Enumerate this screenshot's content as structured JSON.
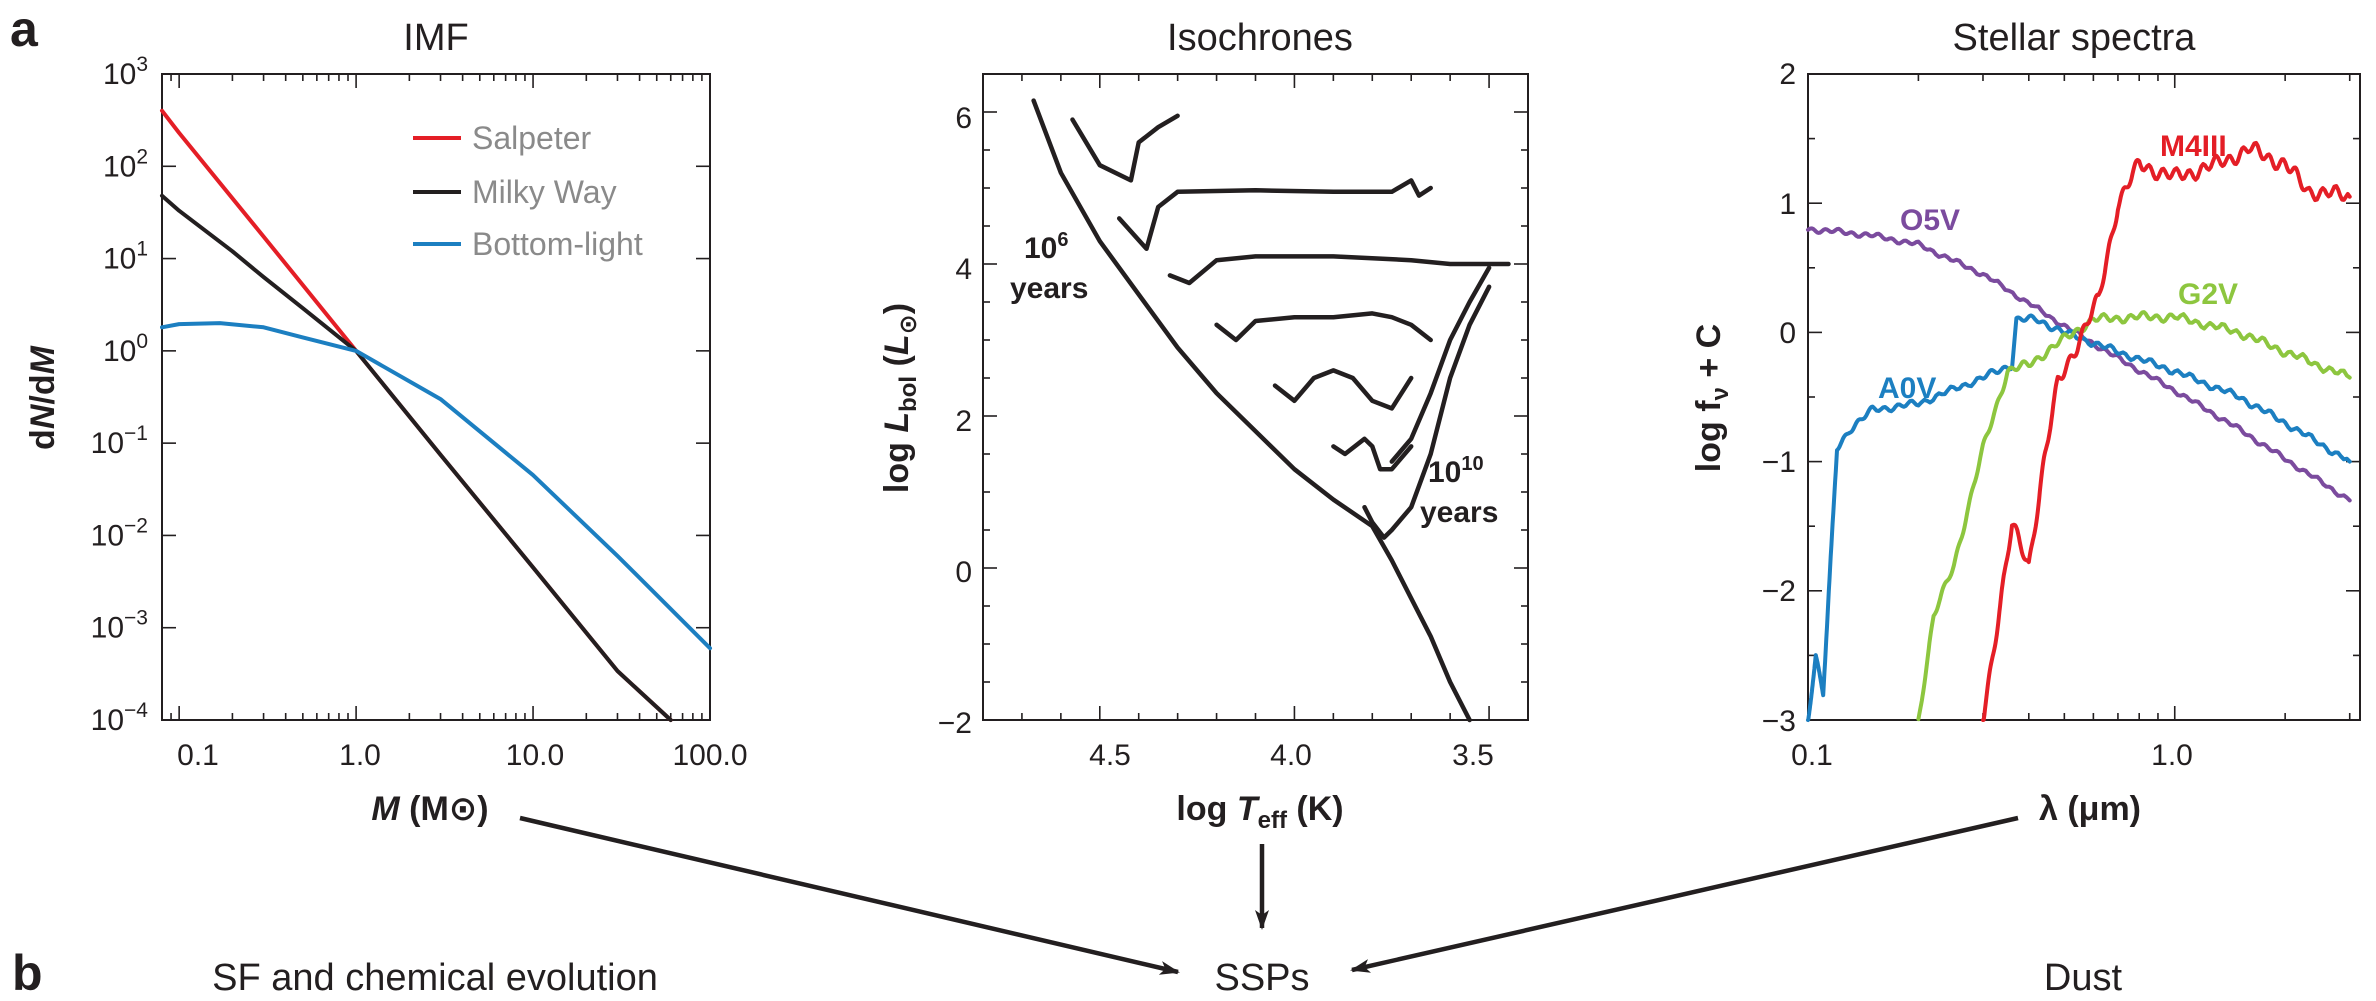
{
  "panel_letters": {
    "a": "a",
    "b": "b"
  },
  "flow": {
    "sf": "SF and chemical evolution",
    "ssps": "SSPs",
    "dust": "Dust"
  },
  "chart_data": [
    {
      "type": "line",
      "title": "IMF",
      "xlabel": "M (M⊙)",
      "ylabel": "dN/dM",
      "xscale": "log",
      "yscale": "log",
      "xlim": [
        0.08,
        100
      ],
      "ylim": [
        0.0001,
        1000
      ],
      "x_ticks": [
        "0.1",
        "1.0",
        "10.0",
        "100.0"
      ],
      "y_ticks": [
        {
          "base": "10",
          "exp": "3"
        },
        {
          "base": "10",
          "exp": "2"
        },
        {
          "base": "10",
          "exp": "1"
        },
        {
          "base": "10",
          "exp": "0"
        },
        {
          "base": "10",
          "exp": "−1"
        },
        {
          "base": "10",
          "exp": "−2"
        },
        {
          "base": "10",
          "exp": "−3"
        },
        {
          "base": "10",
          "exp": "−4"
        }
      ],
      "legend_position": "top-right",
      "series": [
        {
          "name": "Salpeter",
          "color": "#e41e26",
          "x": [
            0.08,
            0.1,
            0.3,
            1.0,
            3.0,
            10.0,
            30.0,
            60.0
          ],
          "y": [
            400,
            230,
            17.3,
            1.0,
            0.075,
            0.0045,
            0.00034,
            6.6e-05
          ]
        },
        {
          "name": "Milky Way",
          "color": "#231f20",
          "x": [
            0.08,
            0.1,
            0.2,
            0.3,
            0.5,
            1.0,
            3.0,
            10.0,
            30.0,
            60.0
          ],
          "y": [
            48,
            33,
            12,
            6.3,
            2.9,
            1.0,
            0.075,
            0.0045,
            0.00034,
            6.6e-05
          ]
        },
        {
          "name": "Bottom-light",
          "color": "#1c7fc1",
          "x": [
            0.08,
            0.1,
            0.17,
            0.3,
            0.5,
            1.0,
            3.0,
            10.0,
            30.0,
            100.0
          ],
          "y": [
            1.8,
            1.95,
            2.0,
            1.8,
            1.4,
            1.0,
            0.3,
            0.045,
            0.006,
            0.0006
          ]
        }
      ]
    },
    {
      "type": "line",
      "title": "Isochrones",
      "xlabel": "log T_eff (K)",
      "ylabel": "log L_bol (L⊙)",
      "x_reversed": true,
      "xlim": [
        4.8,
        3.4
      ],
      "ylim": [
        -2,
        6.5
      ],
      "x_ticks": [
        "4.5",
        "4.0",
        "3.5"
      ],
      "y_ticks": [
        "6",
        "4",
        "2",
        "0",
        "−2"
      ],
      "annotations": [
        {
          "base": "10",
          "exp": "6",
          "word": "years"
        },
        {
          "base": "10",
          "exp": "10",
          "word": "years"
        }
      ],
      "series": [
        {
          "name": "",
          "color": "#231f20",
          "x": [
            4.67,
            4.6,
            4.5,
            4.4,
            4.3,
            4.2,
            4.1,
            4.0,
            3.9,
            3.8,
            3.75,
            3.7,
            3.65,
            3.6,
            3.55
          ],
          "y": [
            6.15,
            5.2,
            4.3,
            3.6,
            2.9,
            2.3,
            1.8,
            1.3,
            0.9,
            0.55,
            0.1,
            -0.4,
            -0.9,
            -1.5,
            -2.0
          ]
        },
        {
          "name": "",
          "color": "#231f20",
          "x": [
            4.57,
            4.5,
            4.42,
            4.4,
            4.35,
            4.3
          ],
          "y": [
            5.9,
            5.3,
            5.1,
            5.6,
            5.8,
            5.95
          ]
        },
        {
          "name": "",
          "color": "#231f20",
          "x": [
            4.45,
            4.38,
            4.35,
            4.3,
            4.1,
            3.9,
            3.75,
            3.7,
            3.68,
            3.65
          ],
          "y": [
            4.6,
            4.2,
            4.75,
            4.95,
            4.97,
            4.95,
            4.95,
            5.1,
            4.9,
            5.0
          ]
        },
        {
          "name": "",
          "color": "#231f20",
          "x": [
            4.32,
            4.27,
            4.2,
            4.1,
            3.9,
            3.7,
            3.6,
            3.5,
            3.45
          ],
          "y": [
            3.85,
            3.75,
            4.05,
            4.1,
            4.1,
            4.05,
            4.0,
            4.0,
            4.0
          ]
        },
        {
          "name": "",
          "color": "#231f20",
          "x": [
            4.2,
            4.15,
            4.1,
            4.0,
            3.9,
            3.8,
            3.75,
            3.7,
            3.65
          ],
          "y": [
            3.2,
            3.0,
            3.25,
            3.3,
            3.3,
            3.35,
            3.3,
            3.2,
            3.0
          ]
        },
        {
          "name": "",
          "color": "#231f20",
          "x": [
            4.05,
            4.0,
            3.95,
            3.9,
            3.85,
            3.8,
            3.75,
            3.7
          ],
          "y": [
            2.4,
            2.2,
            2.5,
            2.6,
            2.5,
            2.2,
            2.1,
            2.5
          ]
        },
        {
          "name": "",
          "color": "#231f20",
          "x": [
            3.9,
            3.87,
            3.82,
            3.8,
            3.78,
            3.75,
            3.7
          ],
          "y": [
            1.6,
            1.5,
            1.7,
            1.6,
            1.3,
            1.3,
            1.6
          ]
        },
        {
          "name": "",
          "color": "#231f20",
          "x": [
            3.82,
            3.8,
            3.77,
            3.75,
            3.7,
            3.65,
            3.6,
            3.55,
            3.5
          ],
          "y": [
            0.8,
            0.6,
            0.4,
            0.5,
            0.8,
            1.5,
            2.5,
            3.2,
            3.7
          ]
        },
        {
          "name": "",
          "color": "#231f20",
          "x": [
            3.75,
            3.7,
            3.65,
            3.6,
            3.55,
            3.5
          ],
          "y": [
            1.4,
            1.7,
            2.3,
            3.0,
            3.5,
            3.95
          ]
        }
      ]
    },
    {
      "type": "line",
      "title": "Stellar spectra",
      "xlabel": "λ (μm)",
      "ylabel": "log f_ν + C",
      "xscale": "log",
      "xlim": [
        0.1,
        3.2
      ],
      "ylim": [
        -3,
        2
      ],
      "x_ticks": [
        "0.1",
        "1.0"
      ],
      "y_ticks": [
        "2",
        "1",
        "0",
        "−1",
        "−2",
        "−3"
      ],
      "series": [
        {
          "name": "O5V",
          "color": "#7b4b9e",
          "x": [
            0.1,
            0.12,
            0.15,
            0.2,
            0.3,
            0.5,
            0.7,
            1.0,
            1.5,
            2.0,
            3.0
          ],
          "y": [
            0.8,
            0.78,
            0.75,
            0.68,
            0.45,
            0.05,
            -0.2,
            -0.45,
            -0.75,
            -0.98,
            -1.3
          ]
        },
        {
          "name": "A0V",
          "color": "#1c7fc1",
          "x": [
            0.1,
            0.105,
            0.11,
            0.12,
            0.13,
            0.15,
            0.2,
            0.3,
            0.36,
            0.37,
            0.42,
            0.5,
            0.7,
            1.0,
            1.5,
            2.0,
            3.0
          ],
          "y": [
            -3.0,
            -2.5,
            -2.8,
            -0.9,
            -0.75,
            -0.6,
            -0.55,
            -0.35,
            -0.25,
            0.1,
            0.1,
            0.0,
            -0.15,
            -0.3,
            -0.5,
            -0.7,
            -1.0
          ]
        },
        {
          "name": "G2V",
          "color": "#8dc63f",
          "x": [
            0.2,
            0.22,
            0.25,
            0.3,
            0.35,
            0.4,
            0.5,
            0.6,
            0.8,
            1.0,
            1.5,
            2.0,
            3.0
          ],
          "y": [
            -3.0,
            -2.2,
            -1.8,
            -0.9,
            -0.3,
            -0.25,
            -0.05,
            0.1,
            0.12,
            0.12,
            0.0,
            -0.15,
            -0.35
          ]
        },
        {
          "name": "M4III",
          "color": "#e41e26",
          "x": [
            0.3,
            0.33,
            0.36,
            0.4,
            0.44,
            0.48,
            0.55,
            0.62,
            0.7,
            0.8,
            1.0,
            1.3,
            1.6,
            2.0,
            2.3,
            3.0
          ],
          "y": [
            -3.0,
            -2.2,
            -1.5,
            -1.8,
            -1.0,
            -0.4,
            -0.05,
            0.25,
            1.0,
            1.3,
            1.2,
            1.3,
            1.42,
            1.3,
            1.1,
            1.05
          ]
        }
      ]
    }
  ]
}
